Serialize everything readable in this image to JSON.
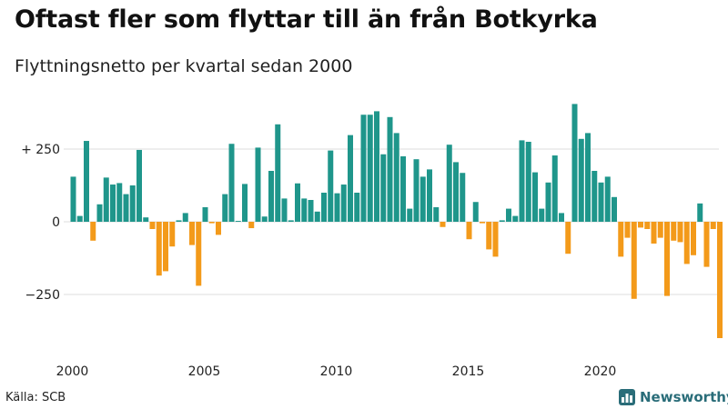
{
  "title": "Oftast fler som flyttar till än från Botkyrka",
  "subtitle": "Flyttningsnetto per kvartal sedan 2000",
  "source": "Källa: SCB",
  "brand": {
    "name": "Newsworthy",
    "icon": "newsworthy-logo-icon"
  },
  "colors": {
    "positive": "#1f968b",
    "negative": "#f39a1a",
    "grid": "#dcdcdc",
    "axis_text": "#222222",
    "brand": "#2a6d79"
  },
  "chart_data": {
    "type": "bar",
    "title": "Oftast fler som flyttar till än från Botkyrka",
    "subtitle": "Flyttningsnetto per kvartal sedan 2000",
    "x_start": "2000 Q1",
    "frequency": "quarterly",
    "xticks": [
      2000,
      2005,
      2010,
      2015,
      2020
    ],
    "yticks": [
      250,
      0,
      -250
    ],
    "ytick_labels": [
      "+ 250",
      "0",
      "−250"
    ],
    "ylim": [
      -420,
      430
    ],
    "grid": true,
    "values": [
      155,
      20,
      278,
      -65,
      60,
      152,
      128,
      133,
      95,
      125,
      247,
      15,
      -25,
      -185,
      -170,
      -85,
      5,
      30,
      -80,
      -220,
      50,
      -5,
      -45,
      95,
      268,
      3,
      130,
      -22,
      255,
      18,
      175,
      335,
      80,
      5,
      132,
      80,
      75,
      35,
      100,
      245,
      98,
      128,
      298,
      100,
      368,
      368,
      380,
      232,
      360,
      305,
      225,
      45,
      215,
      155,
      180,
      50,
      -18,
      265,
      205,
      168,
      -60,
      68,
      -5,
      -95,
      -120,
      5,
      45,
      20,
      280,
      275,
      170,
      45,
      135,
      228,
      30,
      -110,
      405,
      285,
      305,
      175,
      135,
      155,
      85,
      -120,
      -55,
      -265,
      -20,
      -25,
      -75,
      -55,
      -255,
      -65,
      -70,
      -145,
      -115,
      63,
      -155,
      -25,
      -400
    ]
  }
}
